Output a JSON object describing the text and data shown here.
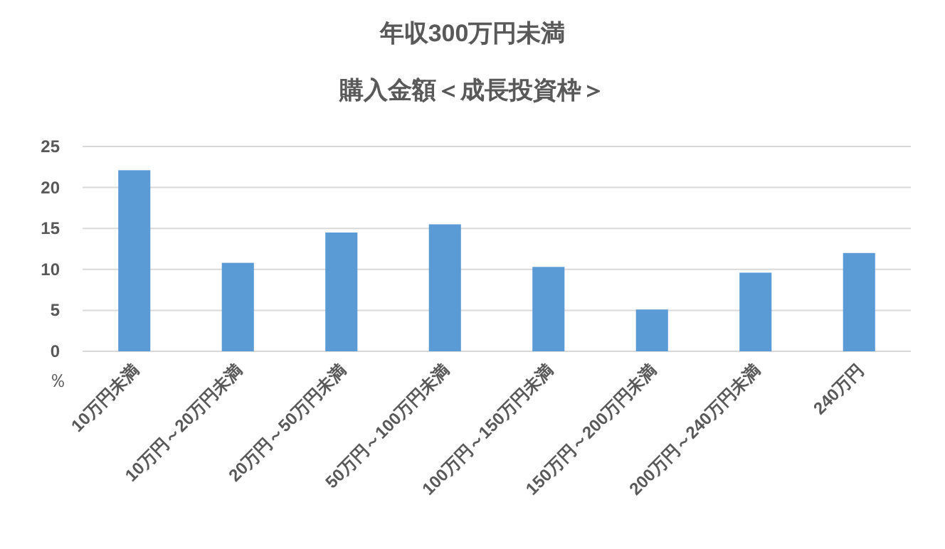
{
  "chart_data": {
    "type": "bar",
    "title": "年収300万円未満",
    "subtitle": "購入金額＜成長投資枠＞",
    "ylabel": "％",
    "categories": [
      "10万円未満",
      "10万円～20万円未満",
      "20万円～50万円未満",
      "50万円～100万円未満",
      "100万円～150万円未満",
      "150万円～200万円未満",
      "200万円～240万円未満",
      "240万円"
    ],
    "values": [
      22.1,
      10.8,
      14.5,
      15.5,
      10.3,
      5.1,
      9.6,
      12.0
    ],
    "color": "#5b9bd5",
    "ylim": [
      0,
      25
    ],
    "yticks": [
      0,
      5,
      10,
      15,
      20,
      25
    ],
    "grid": "y"
  }
}
